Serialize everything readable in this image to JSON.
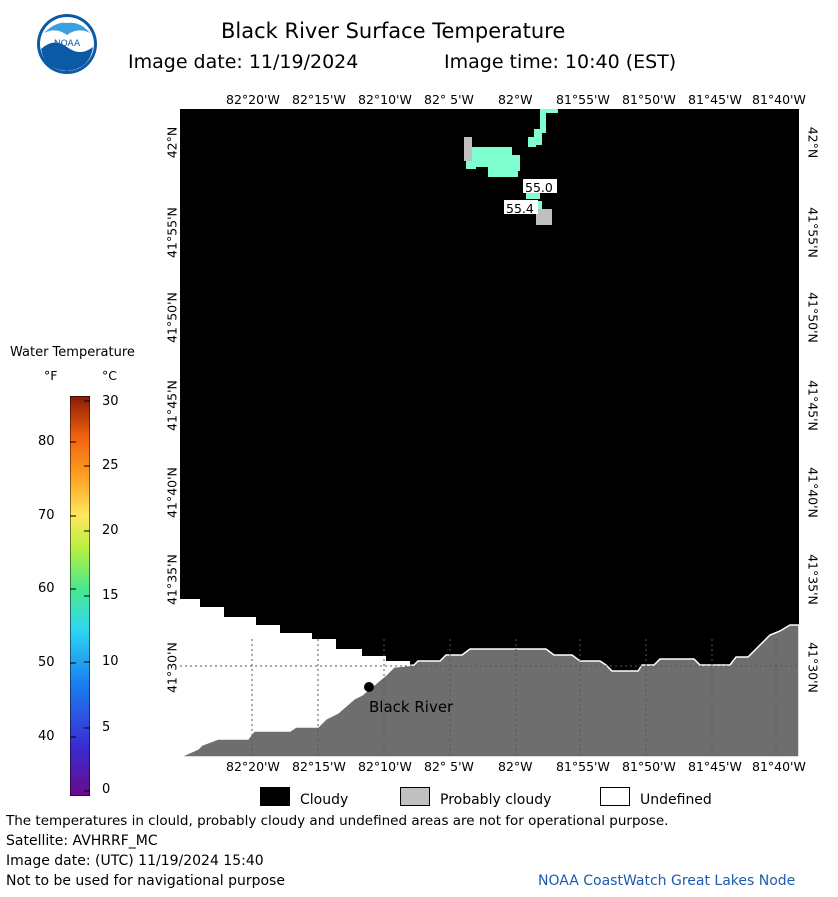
{
  "header": {
    "title": "Black River Surface Temperature",
    "image_date": "Image date: 11/19/2024",
    "image_time": "Image time: 10:40 (EST)"
  },
  "logo": {
    "text": "NOAA",
    "color_outer": "#0a5aa6",
    "color_inner": "#3aa0e0"
  },
  "colorbar": {
    "title": "Water Temperature",
    "unit_f": "°F",
    "unit_c": "°C",
    "ticks_f": [
      "80",
      "70",
      "60",
      "50",
      "40"
    ],
    "ticks_c": [
      "30",
      "25",
      "20",
      "15",
      "10",
      "5",
      "0"
    ]
  },
  "map": {
    "lon_labels": [
      "82°20'W",
      "82°15'W",
      "82°10'W",
      "82° 5'W",
      "82°W",
      "81°55'W",
      "81°50'W",
      "81°45'W",
      "81°40'W"
    ],
    "lat_labels": [
      "42°N",
      "41°55'N",
      "41°50'N",
      "41°45'N",
      "41°40'N",
      "41°35'N",
      "41°30'N"
    ],
    "temp_labels": [
      "55.0",
      "55.4"
    ],
    "place_label": "Black River",
    "colors": {
      "cloudy": "#000000",
      "probably_cloudy": "#c0c0c0",
      "land": "#6e6e6e",
      "undefined": "#ffffff",
      "water_warm": "#7fffd0"
    }
  },
  "legend": {
    "cloudy": "Cloudy",
    "probably_cloudy": "Probably cloudy",
    "undefined": "Undefined"
  },
  "footer": {
    "disclaimer": "The temperatures in clould, probably cloudy and undefined areas are not for operational purpose.",
    "satellite": "Satellite: AVHRRF_MC",
    "utc_date": "Image date: (UTC) 11/19/2024  15:40",
    "nav_warning": "Not to be used for navigational purpose",
    "credit": "NOAA CoastWatch Great Lakes Node"
  }
}
